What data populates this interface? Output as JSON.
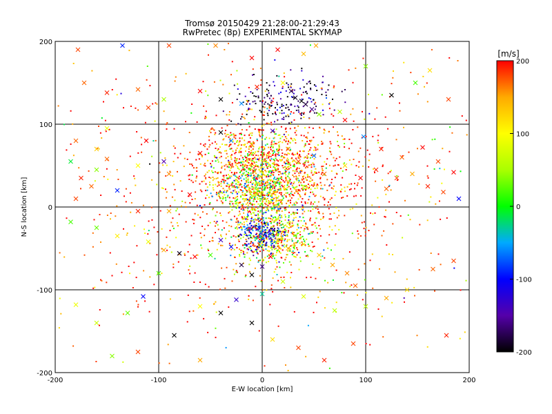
{
  "chart_data": {
    "type": "scatter",
    "title": "Tromsø 20150429 21:28:00-21:29:43",
    "subtitle": "RwPretec (8p) EXPERIMENTAL SKYMAP",
    "xlabel": "E-W location [km]",
    "ylabel": "N-S location [km]",
    "xlim": [
      -200,
      200
    ],
    "ylim": [
      -200,
      200
    ],
    "xticks": [
      -200,
      -100,
      0,
      100,
      200
    ],
    "yticks": [
      -200,
      -100,
      0,
      100,
      200
    ],
    "grid": true,
    "markers": [
      "x",
      "dot"
    ],
    "colorbar": {
      "label": "[m/s]",
      "min": -200,
      "max": 200,
      "ticks": [
        200,
        100,
        0,
        -100,
        -200
      ],
      "colors": [
        "#000000",
        "#5500aa",
        "#0000ff",
        "#00aaff",
        "#00ff00",
        "#aaff00",
        "#ffff00",
        "#ffaa00",
        "#ff0000"
      ]
    },
    "series": [
      {
        "marker": "x",
        "points": [
          [
            -178,
            190,
            180
          ],
          [
            -135,
            195,
            -90
          ],
          [
            -90,
            195,
            180
          ],
          [
            -45,
            195,
            160
          ],
          [
            -10,
            180,
            200
          ],
          [
            15,
            190,
            200
          ],
          [
            40,
            185,
            140
          ],
          [
            52,
            195,
            150
          ],
          [
            -172,
            150,
            170
          ],
          [
            -150,
            138,
            190
          ],
          [
            -120,
            142,
            170
          ],
          [
            -110,
            120,
            180
          ],
          [
            -95,
            130,
            50
          ],
          [
            -60,
            140,
            200
          ],
          [
            -40,
            130,
            -200
          ],
          [
            -20,
            125,
            -60
          ],
          [
            -5,
            145,
            190
          ],
          [
            20,
            150,
            100
          ],
          [
            28,
            140,
            -180
          ],
          [
            32,
            132,
            -190
          ],
          [
            38,
            128,
            -200
          ],
          [
            42,
            124,
            -180
          ],
          [
            48,
            118,
            -160
          ],
          [
            55,
            112,
            40
          ],
          [
            75,
            115,
            60
          ],
          [
            100,
            170,
            40
          ],
          [
            125,
            135,
            -200
          ],
          [
            148,
            150,
            20
          ],
          [
            162,
            165,
            120
          ],
          [
            180,
            130,
            180
          ],
          [
            -150,
            95,
            90
          ],
          [
            -160,
            70,
            130
          ],
          [
            -180,
            80,
            170
          ],
          [
            -150,
            58,
            170
          ],
          [
            -160,
            45,
            40
          ],
          [
            -185,
            55,
            -10
          ],
          [
            -175,
            35,
            190
          ],
          [
            -112,
            80,
            200
          ],
          [
            -120,
            50,
            100
          ],
          [
            -95,
            55,
            -150
          ],
          [
            -90,
            40,
            160
          ],
          [
            -140,
            20,
            -90
          ],
          [
            -165,
            25,
            170
          ],
          [
            -180,
            10,
            180
          ],
          [
            -120,
            -5,
            190
          ],
          [
            -90,
            -5,
            150
          ],
          [
            -70,
            15,
            200
          ],
          [
            -60,
            65,
            200
          ],
          [
            -40,
            90,
            -200
          ],
          [
            -30,
            80,
            -60
          ],
          [
            -10,
            75,
            160
          ],
          [
            10,
            92,
            -150
          ],
          [
            25,
            70,
            170
          ],
          [
            35,
            55,
            180
          ],
          [
            50,
            62,
            -70
          ],
          [
            60,
            40,
            170
          ],
          [
            80,
            50,
            120
          ],
          [
            95,
            35,
            200
          ],
          [
            110,
            45,
            190
          ],
          [
            120,
            22,
            170
          ],
          [
            130,
            35,
            180
          ],
          [
            145,
            40,
            150
          ],
          [
            160,
            25,
            190
          ],
          [
            175,
            18,
            180
          ],
          [
            185,
            42,
            200
          ],
          [
            190,
            10,
            -100
          ],
          [
            170,
            55,
            180
          ],
          [
            155,
            72,
            200
          ],
          [
            135,
            60,
            170
          ],
          [
            115,
            70,
            190
          ],
          [
            98,
            85,
            -60
          ],
          [
            80,
            105,
            200
          ],
          [
            -185,
            -18,
            20
          ],
          [
            -160,
            -25,
            30
          ],
          [
            -140,
            -35,
            110
          ],
          [
            -110,
            -42,
            90
          ],
          [
            -95,
            -52,
            150
          ],
          [
            -80,
            -56,
            -190
          ],
          [
            -65,
            -60,
            200
          ],
          [
            -50,
            -58,
            20
          ],
          [
            -40,
            -40,
            -140
          ],
          [
            -30,
            -48,
            -100
          ],
          [
            -20,
            -70,
            -180
          ],
          [
            -10,
            -82,
            -200
          ],
          [
            0,
            -72,
            -160
          ],
          [
            8,
            -60,
            200
          ],
          [
            15,
            -40,
            120
          ],
          [
            25,
            -50,
            140
          ],
          [
            40,
            -45,
            90
          ],
          [
            55,
            -58,
            130
          ],
          [
            68,
            -70,
            150
          ],
          [
            82,
            -80,
            160
          ],
          [
            90,
            -95,
            170
          ],
          [
            100,
            -120,
            60
          ],
          [
            120,
            -110,
            150
          ],
          [
            140,
            -100,
            120
          ],
          [
            165,
            -75,
            170
          ],
          [
            185,
            -65,
            180
          ],
          [
            -180,
            -118,
            90
          ],
          [
            -160,
            -140,
            70
          ],
          [
            -130,
            -128,
            30
          ],
          [
            -115,
            -108,
            -100
          ],
          [
            -100,
            -80,
            20
          ],
          [
            -85,
            -155,
            -200
          ],
          [
            -60,
            -120,
            100
          ],
          [
            -40,
            -128,
            -200
          ],
          [
            -25,
            -112,
            -130
          ],
          [
            -10,
            -140,
            -200
          ],
          [
            0,
            -105,
            -30
          ],
          [
            20,
            -90,
            70
          ],
          [
            40,
            -108,
            80
          ],
          [
            70,
            -125,
            60
          ],
          [
            88,
            -165,
            180
          ],
          [
            178,
            -155,
            190
          ],
          [
            -145,
            -180,
            40
          ],
          [
            -120,
            -175,
            180
          ],
          [
            10,
            -160,
            120
          ],
          [
            35,
            -170,
            180
          ],
          [
            60,
            -185,
            190
          ],
          [
            -60,
            -185,
            150
          ]
        ]
      },
      {
        "marker": "dot",
        "points": []
      }
    ]
  }
}
